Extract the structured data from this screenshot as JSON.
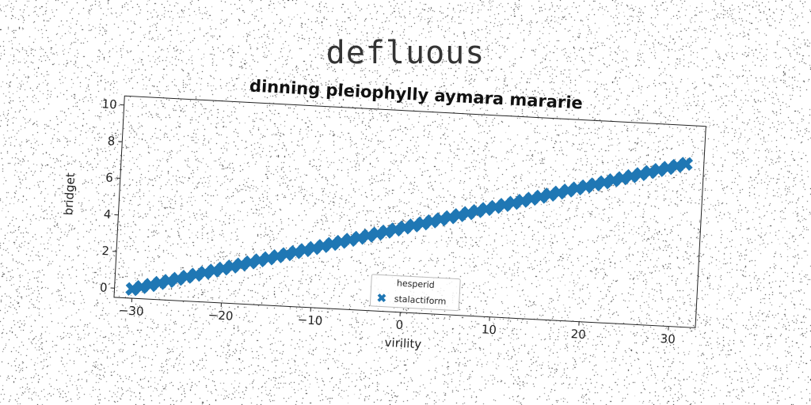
{
  "figure": {
    "suptitle": "defluous"
  },
  "chart_data": {
    "type": "scatter",
    "title": "dinning pleiophylly aymara mararie",
    "xlabel": "virility",
    "ylabel": "bridget",
    "xlim": [
      -32,
      33
    ],
    "ylim": [
      -0.5,
      10.5
    ],
    "xticks": [
      -30,
      -20,
      -10,
      0,
      10,
      20,
      30
    ],
    "yticks": [
      0,
      2,
      4,
      6,
      8,
      10
    ],
    "grid": false,
    "legend": {
      "title": "hesperid",
      "placement": "lower-center",
      "entries": [
        "stalactiform"
      ]
    },
    "series": [
      {
        "name": "stalactiform",
        "marker": "X",
        "color": "#1f77b4",
        "x_start": -30,
        "x_end": 31,
        "x_step": 1,
        "y_start": 0,
        "y_end": 8.4
      }
    ]
  }
}
